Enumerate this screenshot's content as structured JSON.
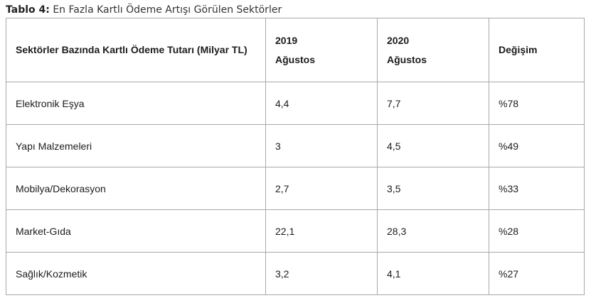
{
  "caption": {
    "label": "Tablo 4:",
    "text": "En Fazla Kartlı Ödeme Artışı Görülen Sektörler"
  },
  "table": {
    "headers": {
      "sector": "Sektörler Bazında Kartlı Ödeme Tutarı (Milyar TL)",
      "col_2019_year": "2019",
      "col_2019_month": "Ağustos",
      "col_2020_year": "2020",
      "col_2020_month": "Ağustos",
      "change": "Değişim"
    },
    "rows": [
      {
        "sector": "Elektronik Eşya",
        "v2019": "4,4",
        "v2020": "7,7",
        "change": "%78"
      },
      {
        "sector": "Yapı Malzemeleri",
        "v2019": "3",
        "v2020": "4,5",
        "change": "%49"
      },
      {
        "sector": "Mobilya/Dekorasyon",
        "v2019": "2,7",
        "v2020": "3,5",
        "change": "%33"
      },
      {
        "sector": "Market-Gıda",
        "v2019": "22,1",
        "v2020": "28,3",
        "change": "%28"
      },
      {
        "sector": "Sağlık/Kozmetik",
        "v2019": "3,2",
        "v2020": "4,1",
        "change": "%27"
      }
    ]
  }
}
